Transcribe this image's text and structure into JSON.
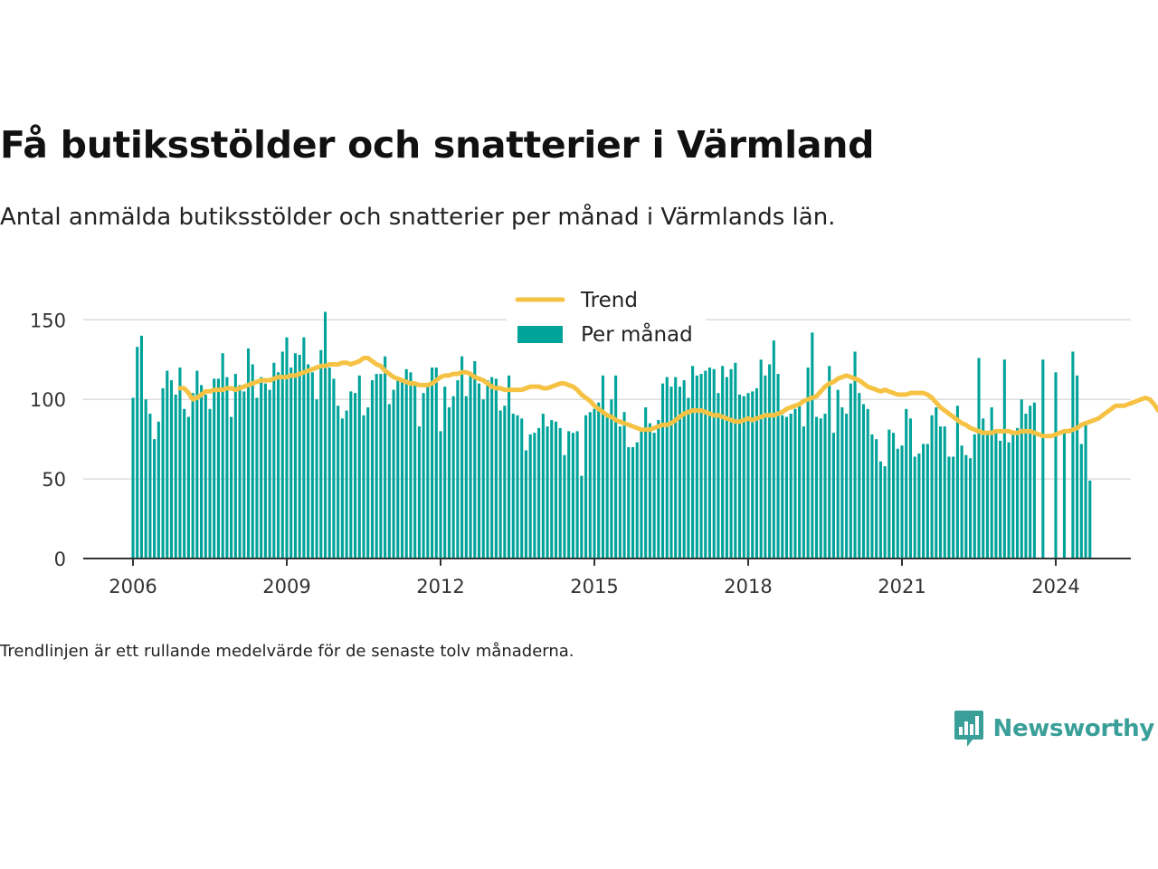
{
  "title": "Få butiksstölder och snatterier i Värmland",
  "subtitle": "Antal anmälda butiksstölder och snatterier per månad i Värmlands län.",
  "footnote": "Trendlinjen är ett rullande medelvärde för de senaste tolv månaderna.",
  "brand": {
    "name": "Newsworthy",
    "icon": "newsworthy-logo-icon"
  },
  "colors": {
    "bars": "#00a39a",
    "trend": "#f6c244",
    "grid": "#dddddd",
    "axis": "#333333"
  },
  "chart_data": {
    "type": "bar",
    "x_start": "2006-01",
    "ylim": [
      0,
      165
    ],
    "yticks": [
      0,
      50,
      100,
      150
    ],
    "xticks": [
      "2006",
      "2009",
      "2012",
      "2015",
      "2018",
      "2021",
      "2024"
    ],
    "grid": true,
    "legend_position": "top",
    "series": [
      {
        "name": "Per månad",
        "type": "bar",
        "values": [
          101,
          133,
          140,
          100,
          91,
          75,
          86,
          107,
          118,
          112,
          103,
          120,
          94,
          89,
          104,
          118,
          109,
          103,
          94,
          113,
          113,
          129,
          114,
          89,
          116,
          109,
          105,
          132,
          122,
          101,
          114,
          110,
          106,
          123,
          117,
          130,
          139,
          120,
          129,
          128,
          139,
          122,
          117,
          100,
          131,
          155,
          120,
          113,
          96,
          88,
          93,
          105,
          104,
          115,
          90,
          95,
          112,
          116,
          116,
          127,
          97,
          106,
          113,
          112,
          119,
          117,
          111,
          83,
          104,
          109,
          120,
          120,
          80,
          108,
          95,
          102,
          112,
          127,
          102,
          116,
          124,
          110,
          100,
          112,
          114,
          113,
          93,
          96,
          115,
          91,
          90,
          88,
          68,
          78,
          79,
          82,
          91,
          83,
          87,
          86,
          82,
          65,
          80,
          79,
          80,
          52,
          90,
          92,
          94,
          98,
          115,
          89,
          100,
          115,
          83,
          92,
          70,
          70,
          73,
          81,
          95,
          85,
          79,
          87,
          110,
          114,
          108,
          114,
          108,
          112,
          101,
          121,
          115,
          116,
          118,
          120,
          119,
          104,
          121,
          114,
          119,
          123,
          103,
          102,
          104,
          105,
          107,
          125,
          115,
          122,
          137,
          116,
          90,
          89,
          91,
          94,
          97,
          83,
          120,
          142,
          89,
          88,
          91,
          121,
          79,
          106,
          95,
          91,
          110,
          130,
          104,
          97,
          94,
          78,
          75,
          61,
          58,
          81,
          79,
          69,
          71,
          94,
          88,
          64,
          66,
          72,
          72,
          90,
          95,
          83,
          83,
          64,
          64,
          96,
          71,
          65,
          63,
          78,
          126,
          88,
          80,
          95,
          80,
          74,
          125,
          73,
          80,
          82,
          100,
          91,
          96,
          98,
          0,
          125,
          0,
          0,
          117,
          0,
          80,
          0,
          130,
          115,
          72,
          84,
          49
        ]
      },
      {
        "name": "Trend",
        "type": "line",
        "start_index": 11,
        "values": [
          107,
          107,
          104,
          100,
          101,
          103,
          105,
          105,
          106,
          106,
          106,
          107,
          107,
          106,
          107,
          108,
          109,
          110,
          111,
          112,
          112,
          112,
          113,
          114,
          114,
          114,
          115,
          115,
          116,
          117,
          118,
          119,
          120,
          121,
          121,
          122,
          122,
          122,
          123,
          123,
          122,
          123,
          124,
          126,
          126,
          124,
          122,
          121,
          118,
          116,
          114,
          113,
          112,
          111,
          110,
          110,
          109,
          109,
          109,
          110,
          112,
          114,
          115,
          115,
          116,
          116,
          117,
          117,
          116,
          114,
          113,
          112,
          110,
          108,
          107,
          107,
          106,
          106,
          106,
          106,
          106,
          107,
          108,
          108,
          108,
          107,
          107,
          108,
          109,
          110,
          110,
          109,
          108,
          106,
          103,
          101,
          99,
          96,
          94,
          92,
          90,
          89,
          87,
          86,
          85,
          84,
          83,
          82,
          81,
          81,
          81,
          82,
          83,
          84,
          84,
          85,
          87,
          89,
          91,
          92,
          93,
          93,
          93,
          92,
          91,
          90,
          90,
          89,
          88,
          87,
          86,
          86,
          87,
          88,
          87,
          88,
          89,
          90,
          90,
          90,
          91,
          92,
          94,
          95,
          96,
          97,
          99,
          100,
          101,
          102,
          105,
          108,
          110,
          111,
          113,
          114,
          115,
          114,
          113,
          112,
          110,
          108,
          107,
          106,
          105,
          106,
          105,
          104,
          103,
          103,
          103,
          104,
          104,
          104,
          104,
          103,
          101,
          98,
          95,
          93,
          91,
          89,
          87,
          85,
          84,
          82,
          81,
          80,
          79,
          79,
          79,
          80,
          80,
          80,
          80,
          79,
          79,
          80,
          80,
          80,
          79,
          78,
          77,
          77,
          77,
          78,
          79,
          80,
          80,
          81,
          82,
          84,
          85,
          86,
          87,
          88,
          90,
          92,
          94,
          96,
          96,
          96,
          97,
          98,
          99,
          100,
          101,
          100,
          97,
          93
        ]
      }
    ]
  }
}
